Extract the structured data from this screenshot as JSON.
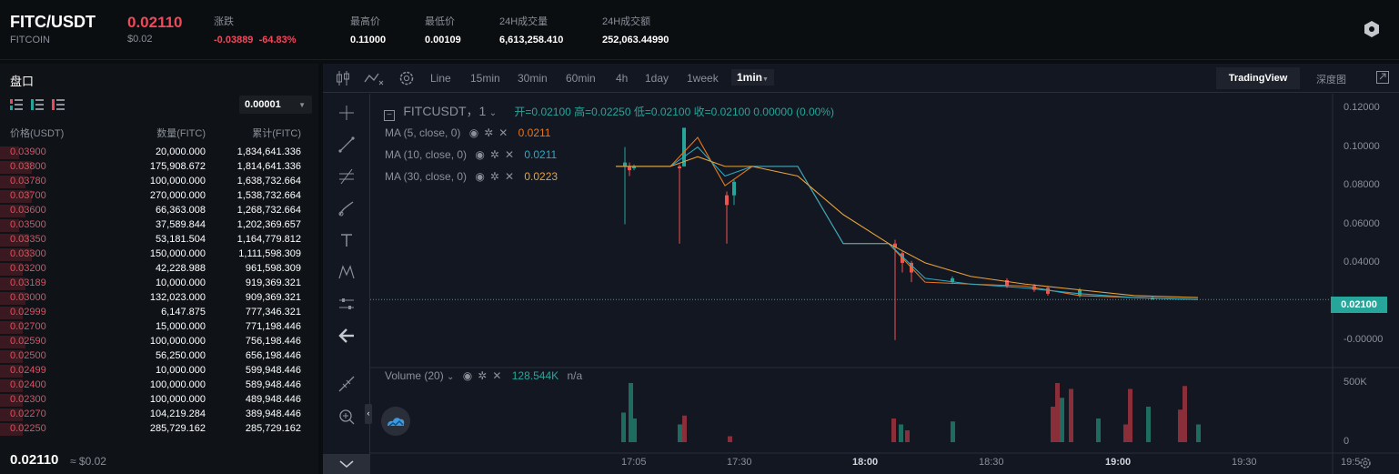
{
  "header": {
    "pair": "FITC/USDT",
    "coin": "FITCOIN",
    "price": "0.02110",
    "price_usd": "$0.02",
    "change_label": "涨跌",
    "change_value": "-0.03889",
    "change_pct": "-64.83%",
    "high_label": "最高价",
    "high_value": "0.11000",
    "low_label": "最低价",
    "low_value": "0.00109",
    "vol_label": "24H成交量",
    "vol_value": "6,613,258.410",
    "amount_label": "24H成交额",
    "amount_value": "252,063.44990"
  },
  "book": {
    "title": "盘口",
    "precision": "0.00001",
    "col_price": "价格(USDT)",
    "col_qty": "数量(FITC)",
    "col_total": "累计(FITC)",
    "rows": [
      {
        "price": "0.03900",
        "qty": "20,000.000",
        "total": "1,834,641.336",
        "depth": 0.06
      },
      {
        "price": "0.03800",
        "qty": "175,908.672",
        "total": "1,814,641.336",
        "depth": 0.1
      },
      {
        "price": "0.03780",
        "qty": "100,000.000",
        "total": "1,638,732.664",
        "depth": 0.08
      },
      {
        "price": "0.03700",
        "qty": "270,000.000",
        "total": "1,538,732.664",
        "depth": 0.1
      },
      {
        "price": "0.03600",
        "qty": "66,363.008",
        "total": "1,268,732.664",
        "depth": 0.08
      },
      {
        "price": "0.03500",
        "qty": "37,589.844",
        "total": "1,202,369.657",
        "depth": 0.06
      },
      {
        "price": "0.03350",
        "qty": "53,181.504",
        "total": "1,164,779.812",
        "depth": 0.09
      },
      {
        "price": "0.03300",
        "qty": "150,000.000",
        "total": "1,111,598.309",
        "depth": 0.1
      },
      {
        "price": "0.03200",
        "qty": "42,228.988",
        "total": "961,598.309",
        "depth": 0.07
      },
      {
        "price": "0.03189",
        "qty": "10,000.000",
        "total": "919,369.321",
        "depth": 0.08
      },
      {
        "price": "0.03000",
        "qty": "132,023.000",
        "total": "909,369.321",
        "depth": 0.08
      },
      {
        "price": "0.02999",
        "qty": "6,147.875",
        "total": "777,346.321",
        "depth": 0.07
      },
      {
        "price": "0.02700",
        "qty": "15,000.000",
        "total": "771,198.446",
        "depth": 0.07
      },
      {
        "price": "0.02590",
        "qty": "100,000.000",
        "total": "756,198.446",
        "depth": 0.08
      },
      {
        "price": "0.02500",
        "qty": "56,250.000",
        "total": "656,198.446",
        "depth": 0.07
      },
      {
        "price": "0.02499",
        "qty": "10,000.000",
        "total": "599,948.446",
        "depth": 0.07
      },
      {
        "price": "0.02400",
        "qty": "100,000.000",
        "total": "589,948.446",
        "depth": 0.07
      },
      {
        "price": "0.02300",
        "qty": "100,000.000",
        "total": "489,948.446",
        "depth": 0.07
      },
      {
        "price": "0.02270",
        "qty": "104,219.284",
        "total": "389,948.446",
        "depth": 0.07
      },
      {
        "price": "0.02250",
        "qty": "285,729.162",
        "total": "285,729.162",
        "depth": 0.07
      }
    ],
    "last_price": "0.02110",
    "last_usd": "≈ $0.02"
  },
  "toolbar": {
    "timeframes": [
      "Line",
      "15min",
      "30min",
      "60min",
      "4h",
      "1day",
      "1week"
    ],
    "active_tf": "1min",
    "tradingview": "TradingView",
    "depth": "深度图"
  },
  "chart": {
    "symbol": "FITCUSDT，1",
    "ohlc": "开=0.02100  高=0.02250  低=0.02100  收=0.02100  0.00000 (0.00%)",
    "ma5_name": "MA (5, close, 0)",
    "ma5_value": "0.0211",
    "ma10_name": "MA (10, close, 0)",
    "ma10_value": "0.0211",
    "ma30_name": "MA (30, close, 0)",
    "ma30_value": "0.0223",
    "volume_name": "Volume (20)",
    "volume_value": "128.544K",
    "volume_na": "n/a",
    "current_price_tag": "0.02100",
    "y_ticks": [
      "0.12000",
      "0.10000",
      "0.08000",
      "0.06000",
      "0.04000",
      "0.02000",
      "-0.00000"
    ],
    "vol_ticks": [
      "500K",
      "0"
    ],
    "x_ticks": [
      "17:05",
      "17:30",
      "18:00",
      "18:30",
      "19:00",
      "19:30",
      "19:5"
    ],
    "colors": {
      "up": "#26a69a",
      "down": "#ef5350",
      "ma5": "#e8751a",
      "ma10": "#2aa8c4",
      "ma30": "#e6a23c"
    }
  },
  "chart_data": {
    "type": "line",
    "x": [
      "17:05",
      "17:15",
      "17:25",
      "17:35",
      "17:45",
      "17:55",
      "18:05",
      "18:15",
      "18:25",
      "18:35",
      "18:45",
      "18:55",
      "19:05",
      "19:15"
    ],
    "series": [
      {
        "name": "MA (5, close, 0)",
        "values": [
          0.09,
          0.09,
          0.105,
          0.08,
          0.09,
          0.09,
          0.05,
          0.05,
          0.03,
          0.029,
          0.028,
          0.023,
          0.022,
          0.021
        ]
      },
      {
        "name": "MA (10, close, 0)",
        "values": [
          0.09,
          0.09,
          0.1,
          0.085,
          0.09,
          0.09,
          0.05,
          0.05,
          0.032,
          0.029,
          0.027,
          0.024,
          0.022,
          0.021
        ]
      },
      {
        "name": "MA (30, close, 0)",
        "values": [
          0.09,
          0.09,
          0.095,
          0.09,
          0.09,
          0.085,
          0.065,
          0.05,
          0.04,
          0.033,
          0.029,
          0.026,
          0.023,
          0.022
        ]
      }
    ],
    "ylim": [
      0,
      0.125
    ]
  }
}
